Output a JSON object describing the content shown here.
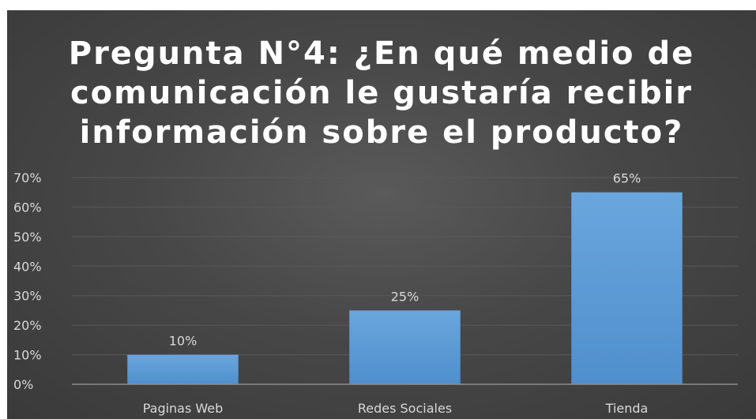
{
  "chart_data": {
    "type": "bar",
    "title_lines": [
      "Pregunta N°4: ¿En qué medio de",
      "comunicación le gustaría recibir",
      "información sobre el producto?"
    ],
    "categories": [
      "Paginas Web",
      "Redes Sociales",
      "Tienda"
    ],
    "values": [
      10,
      25,
      65
    ],
    "data_labels": [
      "10%",
      "25%",
      "65%"
    ],
    "ylim": [
      0,
      70
    ],
    "y_ticks": [
      0,
      10,
      20,
      30,
      40,
      50,
      60,
      70
    ],
    "y_tick_labels": [
      "0%",
      "10%",
      "20%",
      "30%",
      "40%",
      "50%",
      "60%",
      "70%"
    ],
    "xlabel": "",
    "ylabel": "",
    "grid": true,
    "legend": "none",
    "colors": {
      "bar": "#5b9bd5",
      "background": "#404040",
      "text": "#d9d9d9",
      "title": "#ffffff",
      "gridline": "#595959",
      "axis": "#8c8c8c"
    }
  }
}
